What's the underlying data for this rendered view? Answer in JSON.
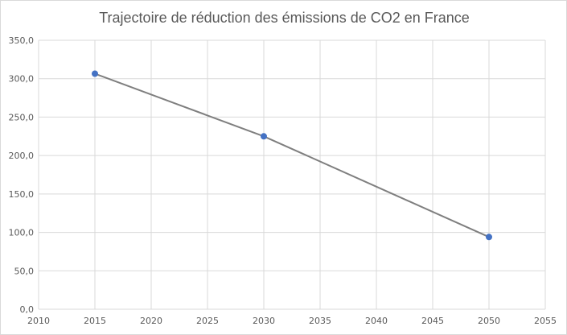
{
  "chart_data": {
    "type": "scatter",
    "title": "Trajectoire de réduction des émissions de CO2 en France",
    "xlabel": "",
    "ylabel": "",
    "xlim": [
      2010,
      2055
    ],
    "ylim": [
      0,
      350
    ],
    "x_ticks": [
      "2010",
      "2015",
      "2020",
      "2025",
      "2030",
      "2035",
      "2040",
      "2045",
      "2050",
      "2055"
    ],
    "y_ticks": [
      "0,0",
      "50,0",
      "100,0",
      "150,0",
      "200,0",
      "250,0",
      "300,0",
      "350,0"
    ],
    "grid": true,
    "legend": "none",
    "series": [
      {
        "x": [
          2015,
          2030,
          2050
        ],
        "values": [
          306.5,
          225.0,
          94.0
        ],
        "line_color": "#7f7f7f",
        "marker_color": "#4472c4",
        "mode": "lines+markers"
      }
    ]
  },
  "colors": {
    "grid": "#d9d9d9",
    "axis_text": "#595959",
    "frame": "#d9d9d9"
  }
}
